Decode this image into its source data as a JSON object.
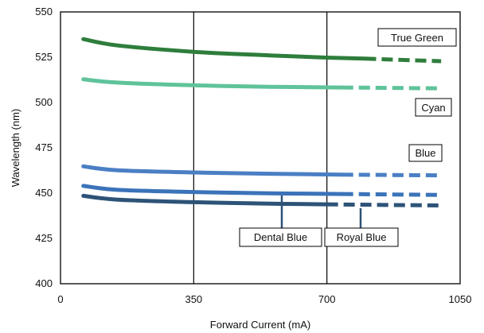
{
  "chart_data": {
    "type": "line",
    "title": "",
    "xlabel": "Forward Current (mA)",
    "ylabel": "Wavelength (nm)",
    "xlim": [
      0,
      1050
    ],
    "ylim": [
      400,
      550
    ],
    "xticks": [
      0,
      350,
      700,
      1050
    ],
    "yticks": [
      400,
      425,
      450,
      475,
      500,
      525,
      550
    ],
    "grid": {
      "vertical": true,
      "horizontal": false
    },
    "series": [
      {
        "name": "True Green",
        "color": "#2e7d3c",
        "solid": [
          [
            60,
            535
          ],
          [
            150,
            531.5
          ],
          [
            350,
            528
          ],
          [
            550,
            526
          ],
          [
            700,
            524.8
          ],
          [
            800,
            524.2
          ]
        ],
        "dashed": [
          [
            800,
            524.2
          ],
          [
            1000,
            522.8
          ]
        ]
      },
      {
        "name": "Cyan",
        "color": "#5fc39a",
        "solid": [
          [
            60,
            512.8
          ],
          [
            150,
            511
          ],
          [
            350,
            509.5
          ],
          [
            550,
            508.7
          ],
          [
            740,
            508.3
          ]
        ],
        "dashed": [
          [
            740,
            508.3
          ],
          [
            1000,
            507.8
          ]
        ]
      },
      {
        "name": "Blue",
        "color": "#4a7fc4",
        "solid": [
          [
            60,
            464.8
          ],
          [
            150,
            462.6
          ],
          [
            350,
            461.4
          ],
          [
            550,
            460.7
          ],
          [
            740,
            460.2
          ]
        ],
        "dashed": [
          [
            740,
            460.2
          ],
          [
            1000,
            459.8
          ]
        ]
      },
      {
        "name": "Royal Blue",
        "color": "#3b73b9",
        "solid": [
          [
            60,
            454
          ],
          [
            150,
            451.8
          ],
          [
            350,
            450.6
          ],
          [
            550,
            449.9
          ],
          [
            740,
            449.5
          ]
        ],
        "dashed": [
          [
            740,
            449.5
          ],
          [
            1000,
            449
          ]
        ]
      },
      {
        "name": "Dental Blue",
        "color": "#2d5377",
        "solid": [
          [
            60,
            448.5
          ],
          [
            150,
            446.4
          ],
          [
            350,
            445
          ],
          [
            550,
            444.2
          ],
          [
            700,
            443.8
          ]
        ],
        "dashed": [
          [
            700,
            443.8
          ],
          [
            1000,
            443.2
          ]
        ]
      }
    ],
    "annotations": {
      "true_green": "True Green",
      "cyan": "Cyan",
      "blue": "Blue",
      "dental_blue": "Dental Blue",
      "royal_blue": "Royal Blue"
    }
  }
}
